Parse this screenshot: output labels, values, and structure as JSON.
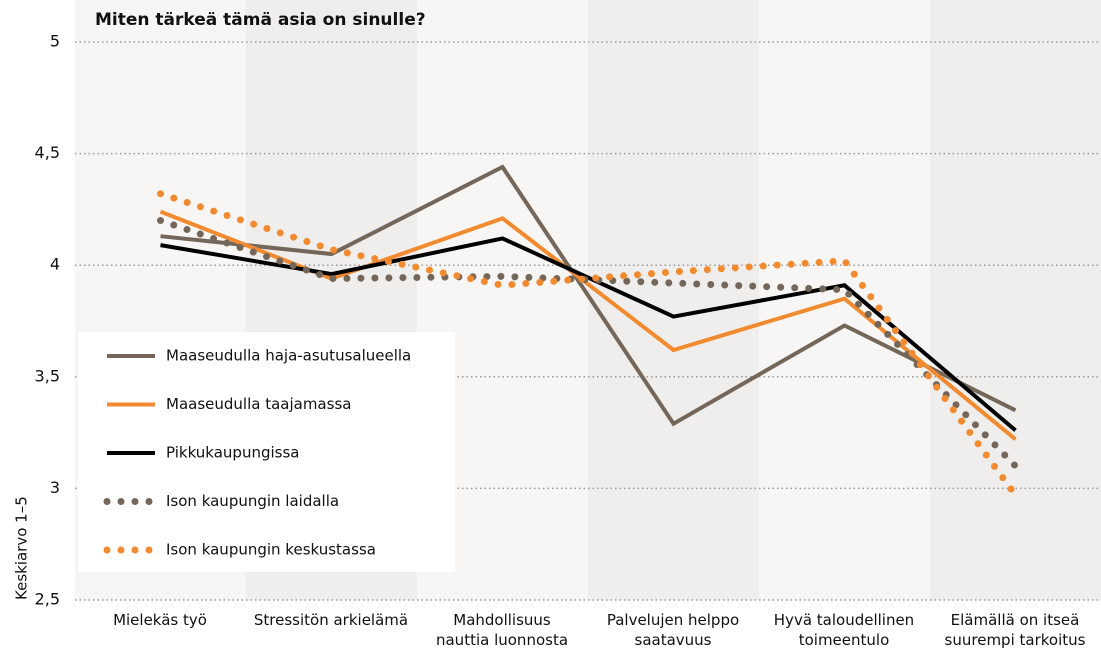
{
  "chart_data": {
    "type": "line",
    "title": "Miten tärkeä tämä asia on sinulle?",
    "y_label": "Keskiarvo 1–5",
    "categories": [
      "Mielekäs työ",
      "Stressitön arkielämä",
      "Mahdollisuus\nnauttia luonnosta",
      "Palvelujen helppo\nsaatavuus",
      "Hyvä taloudellinen\ntoimeentulo",
      "Elämällä on itseä\nsuurempi tarkoitus"
    ],
    "series": [
      {
        "name": "Maaseudulla haja-asutusalueella",
        "color": "#74675a",
        "style": "solid",
        "values": [
          4.13,
          4.05,
          4.44,
          3.29,
          3.73,
          3.35
        ]
      },
      {
        "name": "Maaseudulla taajamassa",
        "color": "#f28a30",
        "style": "solid",
        "values": [
          4.24,
          3.94,
          4.21,
          3.62,
          3.85,
          3.22
        ]
      },
      {
        "name": "Pikkukaupungissa",
        "color": "#000000",
        "style": "solid",
        "values": [
          4.09,
          3.96,
          4.12,
          3.77,
          3.91,
          3.26
        ]
      },
      {
        "name": "Ison kaupungin laidalla",
        "color": "#74675a",
        "style": "dotted",
        "values": [
          4.2,
          3.94,
          3.95,
          3.92,
          3.89,
          3.1
        ]
      },
      {
        "name": "Ison kaupungin keskustassa",
        "color": "#f28a30",
        "style": "dotted",
        "values": [
          4.32,
          4.07,
          3.91,
          3.97,
          4.02,
          2.97
        ]
      }
    ],
    "ylim": [
      2.5,
      5
    ],
    "yticks": [
      {
        "value": 2.5,
        "label": "2,5"
      },
      3,
      {
        "value": 3.5,
        "label": "3,5"
      },
      4,
      {
        "value": 4.5,
        "label": "4,5"
      },
      5
    ],
    "grid": true,
    "legend": "left"
  }
}
